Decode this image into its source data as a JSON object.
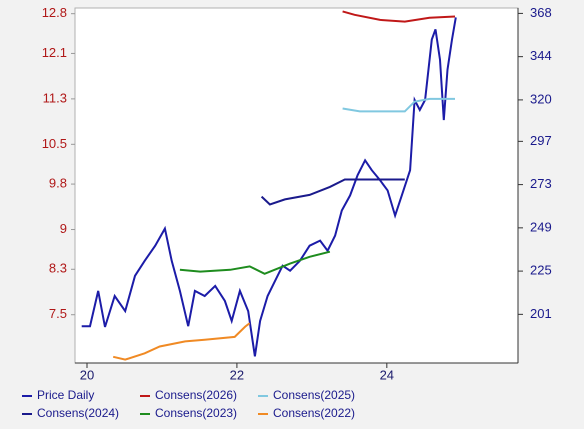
{
  "chart_data": {
    "type": "line",
    "xlim": [
      19.84,
      25.75
    ],
    "xticks": [
      20,
      22,
      24
    ],
    "ylim": [
      6.65,
      12.9
    ],
    "yticks": [
      12.8,
      12.1,
      11.3,
      10.5,
      9.8,
      9.0,
      8.3,
      7.5
    ],
    "y2lim": [
      174,
      371
    ],
    "y2ticks": [
      368,
      344,
      320,
      297,
      273,
      249,
      225,
      201
    ],
    "series": [
      {
        "name": "Price Daily",
        "color": "#1c1ca8",
        "axis": "y2",
        "x": [
          19.93,
          20.04,
          20.15,
          20.24,
          20.37,
          20.51,
          20.64,
          20.77,
          20.91,
          21.04,
          21.13,
          21.24,
          21.35,
          21.44,
          21.57,
          21.71,
          21.84,
          21.93,
          22.04,
          22.15,
          22.24,
          22.31,
          22.41,
          22.51,
          22.61,
          22.71,
          22.84,
          22.97,
          23.11,
          23.21,
          23.31,
          23.4,
          23.51,
          23.61,
          23.71,
          23.8,
          23.91,
          24.01,
          24.11,
          24.2,
          24.31,
          24.37,
          24.44,
          24.51,
          24.6,
          24.65,
          24.71,
          24.76,
          24.81,
          24.87,
          24.92
        ],
        "values": [
          194.4,
          194.4,
          214,
          194,
          211.2,
          202.8,
          222.4,
          230.7,
          239.1,
          248.6,
          230.7,
          214,
          194.4,
          214,
          211.2,
          216.8,
          208.4,
          197.3,
          214,
          202.8,
          177.7,
          197.3,
          211.2,
          219.6,
          228,
          225.2,
          230.7,
          239.1,
          241.9,
          236.3,
          244.7,
          258.6,
          267,
          278.2,
          286.5,
          281,
          275.4,
          269.8,
          255.8,
          267,
          281,
          320,
          314.4,
          320,
          353.5,
          359.1,
          342.3,
          308.8,
          336.8,
          353.5,
          365.8
        ]
      },
      {
        "name": "Consens(2026)",
        "color": "#c01818",
        "x": [
          23.41,
          23.57,
          23.91,
          24.24,
          24.57,
          24.91
        ],
        "values": [
          12.84,
          12.78,
          12.69,
          12.66,
          12.73,
          12.75
        ]
      },
      {
        "name": "Consens(2025)",
        "color": "#80c8e0",
        "x": [
          23.41,
          23.64,
          24.24,
          24.37,
          24.57,
          24.91
        ],
        "values": [
          11.13,
          11.08,
          11.08,
          11.25,
          11.3,
          11.3
        ]
      },
      {
        "name": "Consens(2024)",
        "color": "#1a1a8c",
        "x": [
          22.33,
          22.44,
          22.64,
          22.97,
          23.24,
          23.44,
          23.77,
          24.24
        ],
        "values": [
          9.58,
          9.44,
          9.53,
          9.61,
          9.75,
          9.88,
          9.88,
          9.88
        ]
      },
      {
        "name": "Consens(2023)",
        "color": "#1e8c1e",
        "x": [
          21.24,
          21.51,
          21.91,
          22.17,
          22.37,
          22.71,
          22.97,
          23.24
        ],
        "values": [
          8.29,
          8.26,
          8.29,
          8.35,
          8.22,
          8.4,
          8.52,
          8.61
        ]
      },
      {
        "name": "Consens(2022)",
        "color": "#f08a24",
        "x": [
          20.35,
          20.51,
          20.77,
          20.97,
          21.31,
          21.57,
          21.97,
          22.11,
          22.17
        ],
        "values": [
          6.76,
          6.71,
          6.82,
          6.94,
          7.03,
          7.06,
          7.11,
          7.29,
          7.35
        ]
      }
    ]
  }
}
